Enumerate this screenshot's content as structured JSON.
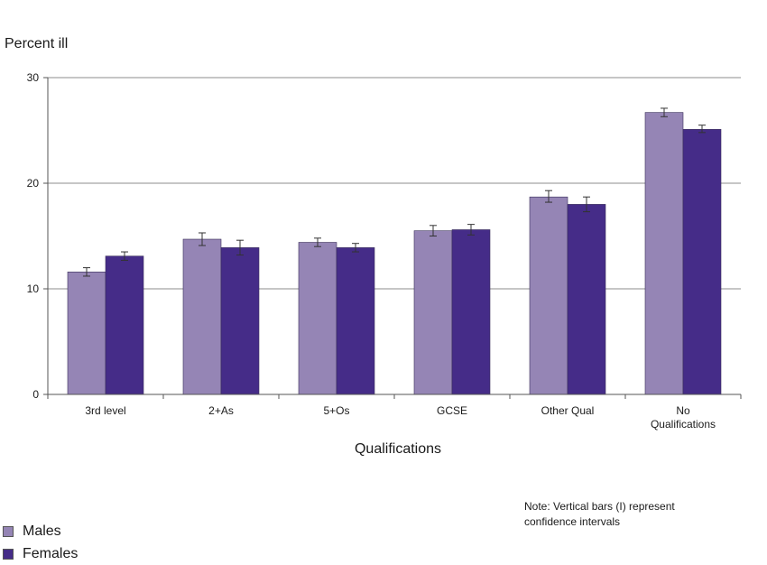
{
  "chart_data": {
    "type": "bar",
    "ylabel": "Percent ill",
    "xlabel": "Qualifications",
    "ylim": [
      0,
      30
    ],
    "yticks": [
      0,
      10,
      20,
      30
    ],
    "grid": true,
    "categories": [
      [
        "3rd level"
      ],
      [
        "2+As"
      ],
      [
        "5+Os"
      ],
      [
        "GCSE"
      ],
      [
        "Other Qual"
      ],
      [
        "No",
        "Qualifications"
      ]
    ],
    "series": [
      {
        "name": "Males",
        "color": "#9585b5",
        "values": [
          11.6,
          14.7,
          14.4,
          15.5,
          18.7,
          26.7
        ],
        "ci_low": [
          11.2,
          14.1,
          14.0,
          15.0,
          18.2,
          26.3
        ],
        "ci_high": [
          12.0,
          15.3,
          14.8,
          16.0,
          19.3,
          27.1
        ]
      },
      {
        "name": "Females",
        "color": "#452c88",
        "values": [
          13.1,
          13.9,
          13.9,
          15.6,
          18.0,
          25.1
        ],
        "ci_low": [
          12.7,
          13.2,
          13.5,
          15.1,
          17.3,
          24.8
        ],
        "ci_high": [
          13.5,
          14.6,
          14.3,
          16.1,
          18.7,
          25.5
        ]
      }
    ],
    "legend_position": "bottom-left",
    "note": [
      "Note: Vertical bars (I) represent",
      "confidence intervals"
    ]
  }
}
